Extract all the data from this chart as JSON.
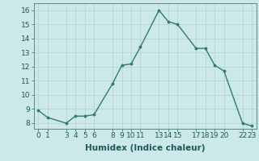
{
  "x": [
    0,
    1,
    3,
    4,
    5,
    6,
    8,
    9,
    10,
    11,
    13,
    14,
    15,
    17,
    18,
    19,
    20,
    22,
    23
  ],
  "y": [
    8.9,
    8.4,
    8.0,
    8.5,
    8.5,
    8.6,
    10.8,
    12.1,
    12.2,
    13.4,
    16.0,
    15.2,
    15.0,
    13.3,
    13.3,
    12.1,
    11.7,
    8.0,
    7.8
  ],
  "line_color": "#2e7d6e",
  "marker_color": "#2e7d6e",
  "bg_color": "#cce8e8",
  "grid_major_color": "#b8d4d4",
  "grid_minor_color": "#d4e8e8",
  "xlabel": "Humidex (Indice chaleur)",
  "xlim": [
    -0.5,
    23.5
  ],
  "ylim": [
    7.6,
    16.5
  ],
  "yticks": [
    8,
    9,
    10,
    11,
    12,
    13,
    14,
    15,
    16
  ],
  "xtick_positions": [
    0,
    1,
    3,
    4,
    5,
    6,
    8,
    9,
    10,
    11,
    13,
    14,
    15,
    17,
    18,
    19,
    20,
    22,
    23
  ],
  "xtick_labels": [
    "0",
    "1",
    "3",
    "4",
    "5",
    "6",
    "8",
    "9",
    "10",
    "11",
    "13",
    "14",
    "15",
    "17",
    "18",
    "19",
    "20",
    "22",
    "23"
  ],
  "tick_fontsize": 6.5,
  "ylabel_fontsize": 7.5,
  "xlabel_fontsize": 7.5
}
